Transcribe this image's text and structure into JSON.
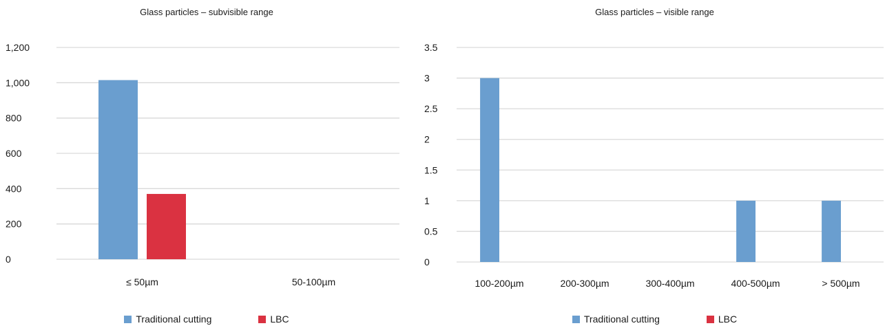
{
  "colors": {
    "traditional_cutting": "#6a9ecf",
    "lbc": "#da3241",
    "gridline": "#d9d9d9"
  },
  "chart_data": [
    {
      "type": "bar",
      "title": "Glass particles – subvisible range",
      "xlabel": "",
      "ylabel": "",
      "categories": [
        "≤ 50µm",
        "50-100µm"
      ],
      "series": [
        {
          "name": "Traditional cutting",
          "values": [
            1015,
            0
          ]
        },
        {
          "name": "LBC",
          "values": [
            370,
            0
          ]
        }
      ],
      "ylim": [
        0,
        1200
      ],
      "yticks": [
        "0",
        "200",
        "400",
        "600",
        "800",
        "1,000",
        "1,200"
      ],
      "grid": true,
      "legend_position": "bottom"
    },
    {
      "type": "bar",
      "title": "Glass particles – visible range",
      "xlabel": "",
      "ylabel": "",
      "categories": [
        "100-200µm",
        "200-300µm",
        "300-400µm",
        "400-500µm",
        "> 500µm"
      ],
      "series": [
        {
          "name": "Traditional cutting",
          "values": [
            3,
            0,
            0,
            1,
            1
          ]
        },
        {
          "name": "LBC",
          "values": [
            0,
            0,
            0,
            0,
            0
          ]
        }
      ],
      "ylim": [
        0,
        3.5
      ],
      "yticks": [
        "0",
        "0.5",
        "1",
        "1.5",
        "2",
        "2.5",
        "3",
        "3.5"
      ],
      "grid": true,
      "legend_position": "bottom"
    }
  ]
}
